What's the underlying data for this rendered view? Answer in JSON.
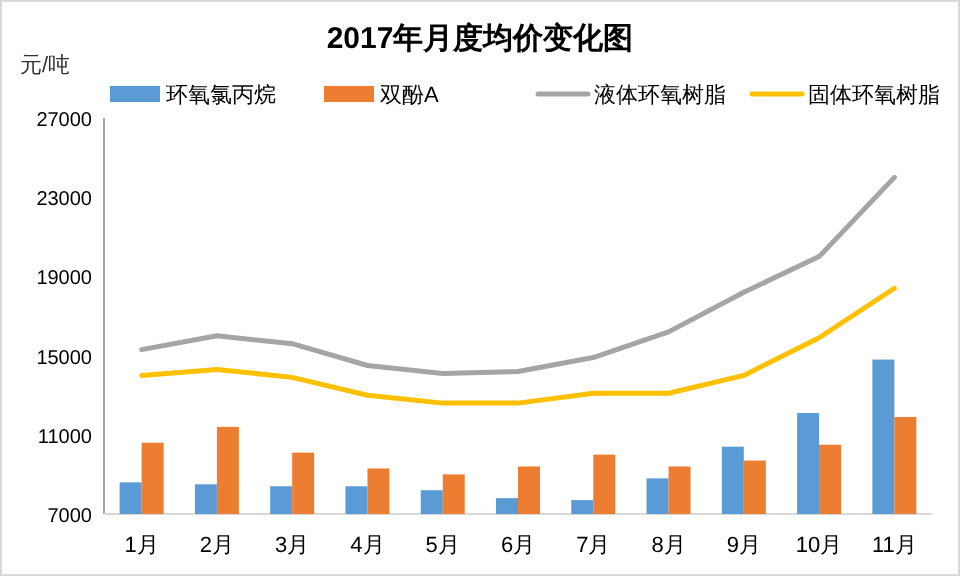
{
  "chart_data": {
    "type": "bar",
    "title": "2017年月度均价变化图",
    "ylabel": "元/吨",
    "categories": [
      "1月",
      "2月",
      "3月",
      "4月",
      "5月",
      "6月",
      "7月",
      "8月",
      "9月",
      "10月",
      "11月"
    ],
    "series": [
      {
        "name": "环氧氯丙烷",
        "color": "#5b9bd5",
        "values": [
          8600,
          8500,
          8400,
          8400,
          8200,
          7800,
          7700,
          8800,
          10400,
          12100,
          14800
        ]
      },
      {
        "name": "双酚A",
        "color": "#ed7d31",
        "values": [
          10600,
          11400,
          10100,
          9300,
          9000,
          9400,
          10000,
          9400,
          9700,
          10500,
          11900
        ]
      },
      {
        "name": "液体环氧树脂",
        "type": "line",
        "color": "#a5a5a5",
        "values": [
          15300,
          16000,
          15600,
          14500,
          14100,
          14200,
          14900,
          16200,
          18200,
          20000,
          24000
        ]
      },
      {
        "name": "固体环氧树脂",
        "type": "line",
        "color": "#ffc000",
        "values": [
          14000,
          14300,
          13900,
          13000,
          12600,
          12600,
          13100,
          13100,
          14000,
          15900,
          18400
        ]
      }
    ],
    "ylim": [
      7000,
      27000
    ],
    "yticks": [
      7000,
      11000,
      15000,
      19000,
      23000,
      27000
    ],
    "legend": "top",
    "grid": false
  }
}
